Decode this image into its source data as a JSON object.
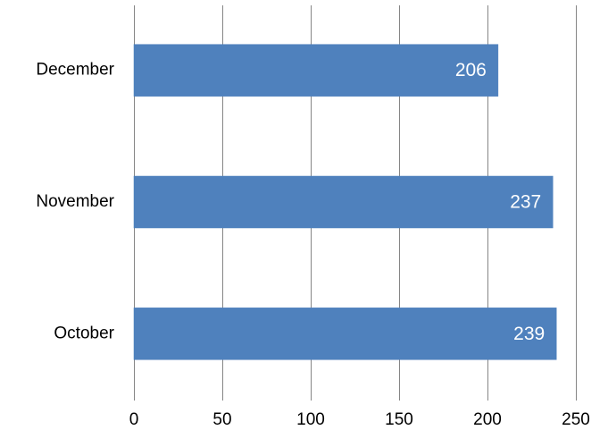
{
  "chart_data": {
    "type": "bar",
    "orientation": "horizontal",
    "categories": [
      "December",
      "November",
      "October"
    ],
    "values": [
      206,
      237,
      239
    ],
    "xlim": [
      0,
      250
    ],
    "x_ticks": [
      0,
      50,
      100,
      150,
      200,
      250
    ],
    "grid": true,
    "data_labels": true,
    "bar_color": "#4f81bd",
    "data_label_color": "#ffffff",
    "title": "",
    "xlabel": "",
    "ylabel": ""
  }
}
